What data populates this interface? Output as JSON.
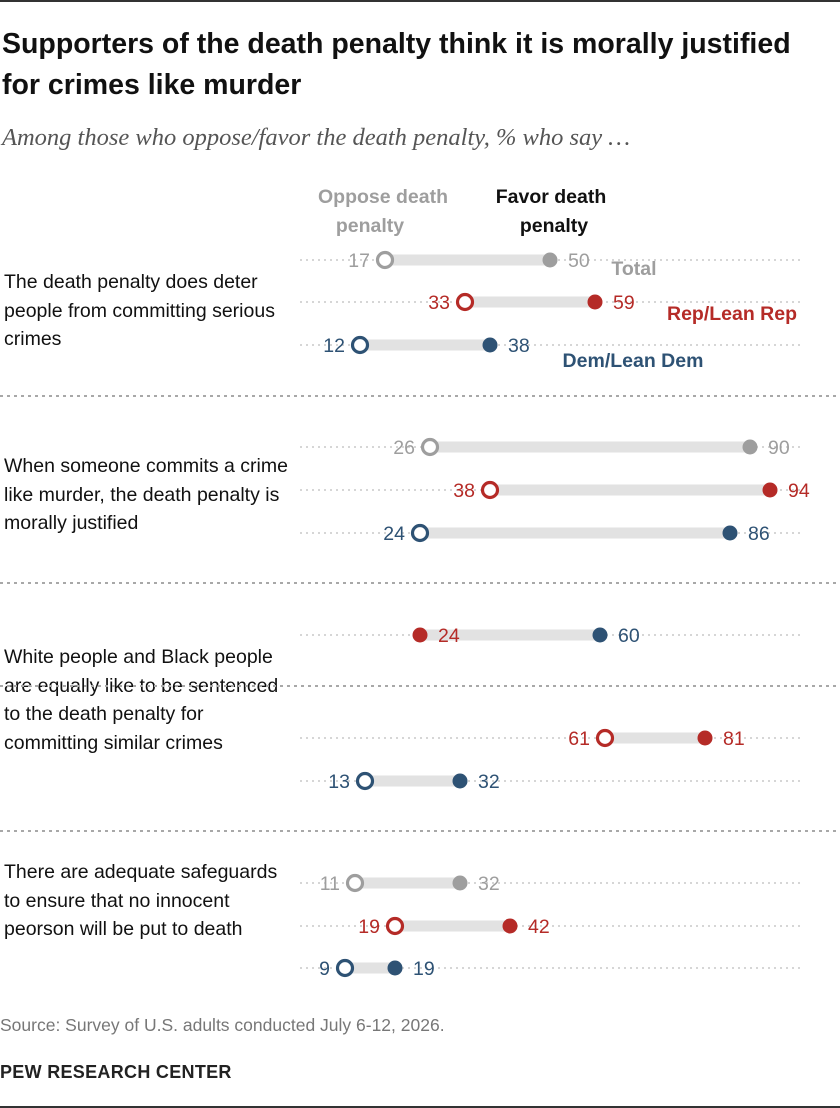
{
  "title": "Supporters of the death penalty think it is morally justified for crimes like murder",
  "subtitle": "Among those who oppose/favor the death penalty, % who say …",
  "footer": {
    "source": "Source: Survey of U.S. adults conducted July 6-12, 2026.",
    "org": "PEW RESEARCH CENTER"
  },
  "colors": {
    "total": "#9e9e9e",
    "rep": "#b52b27",
    "dem": "#2e5274",
    "track": "#e2e2e2",
    "gridline": "#d6d6d6",
    "divider": "#a8a8a8"
  },
  "chart_data": {
    "type": "dot-range",
    "column_headers": {
      "oppose": "Oppose death penalty",
      "favor": "Favor death penalty"
    },
    "series_legend": [
      {
        "key": "total",
        "label": "Total"
      },
      {
        "key": "rep",
        "label": "Rep/Lean Rep"
      },
      {
        "key": "dem",
        "label": "Dem/Lean Dem"
      }
    ],
    "questions": [
      {
        "text": "The death penalty does deter people from committing serious crimes",
        "rows": [
          {
            "group": "total",
            "oppose": 17,
            "favor": 50
          },
          {
            "group": "rep",
            "oppose": 33,
            "favor": 59
          },
          {
            "group": "dem",
            "oppose": 12,
            "favor": 38
          }
        ]
      },
      {
        "text": "When someone commits a crime like murder, the death penalty is morally justified",
        "rows": [
          {
            "group": "total",
            "oppose": 26,
            "favor": 90
          },
          {
            "group": "rep",
            "oppose": 38,
            "favor": 94
          },
          {
            "group": "dem",
            "oppose": 24,
            "favor": 86
          }
        ]
      },
      {
        "text": "White people and Black people are equally like to be sentenced to the death penalty for committing similar crimes",
        "rows": [
          {
            "group": "total",
            "oppose": 24,
            "favor": 60
          },
          {
            "group": "rep",
            "oppose": 61,
            "favor": 81
          },
          {
            "group": "dem",
            "oppose": 13,
            "favor": 32
          }
        ]
      },
      {
        "text": "There are adequate safeguards to ensure that no innocent peorson will be put to death",
        "rows": [
          {
            "group": "total",
            "oppose": 11,
            "favor": 32
          },
          {
            "group": "rep",
            "oppose": 19,
            "favor": 42
          },
          {
            "group": "dem",
            "oppose": 9,
            "favor": 19
          }
        ]
      }
    ],
    "xlim": [
      0,
      100
    ]
  }
}
